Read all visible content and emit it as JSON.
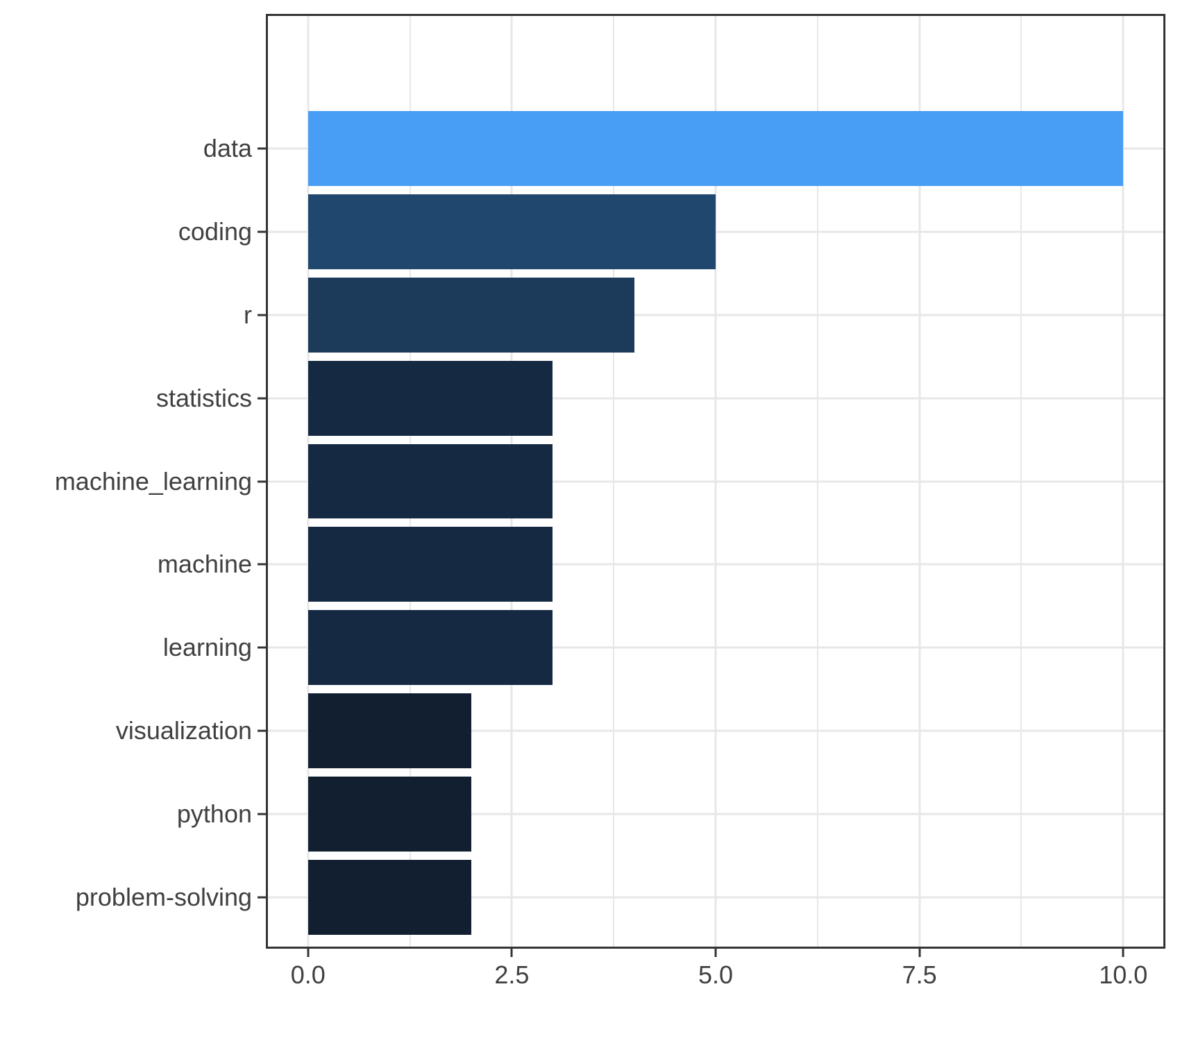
{
  "chart_data": {
    "type": "bar",
    "orientation": "horizontal",
    "title": "",
    "xlabel": "",
    "ylabel": "",
    "categories": [
      "data",
      "coding",
      "r",
      "statistics",
      "machine_learning",
      "machine",
      "learning",
      "visualization",
      "python",
      "problem-solving"
    ],
    "values": [
      10,
      5,
      4,
      3,
      3,
      3,
      3,
      2,
      2,
      2
    ],
    "bar_colors": [
      "#489EF4",
      "#20486E",
      "#1C3A59",
      "#152A42",
      "#152A42",
      "#152A42",
      "#152A42",
      "#111F31",
      "#111F31",
      "#111F31"
    ],
    "xlim": [
      -0.5,
      10.5
    ],
    "x_major_ticks": [
      0,
      2.5,
      5,
      7.5,
      10
    ],
    "x_tick_labels": [
      "0.0",
      "2.5",
      "5.0",
      "7.5",
      "10.0"
    ],
    "x_minor_gridlines": [
      1.25,
      3.75,
      6.25,
      8.75
    ],
    "grid": "vertical major+minor, horizontal major at category centers",
    "legend": "none",
    "style": {
      "background": "#FFFFFF",
      "panel_background": "#FFFFFF",
      "panel_border": "#343434",
      "gridline_color": "#E7E7E7",
      "tick_color": "#343434",
      "axis_label_color": "#404040",
      "fill_scale_low_value": 2,
      "fill_scale_low_color": "#111F31",
      "fill_scale_high_value": 10,
      "fill_scale_high_color": "#489EF4"
    }
  }
}
